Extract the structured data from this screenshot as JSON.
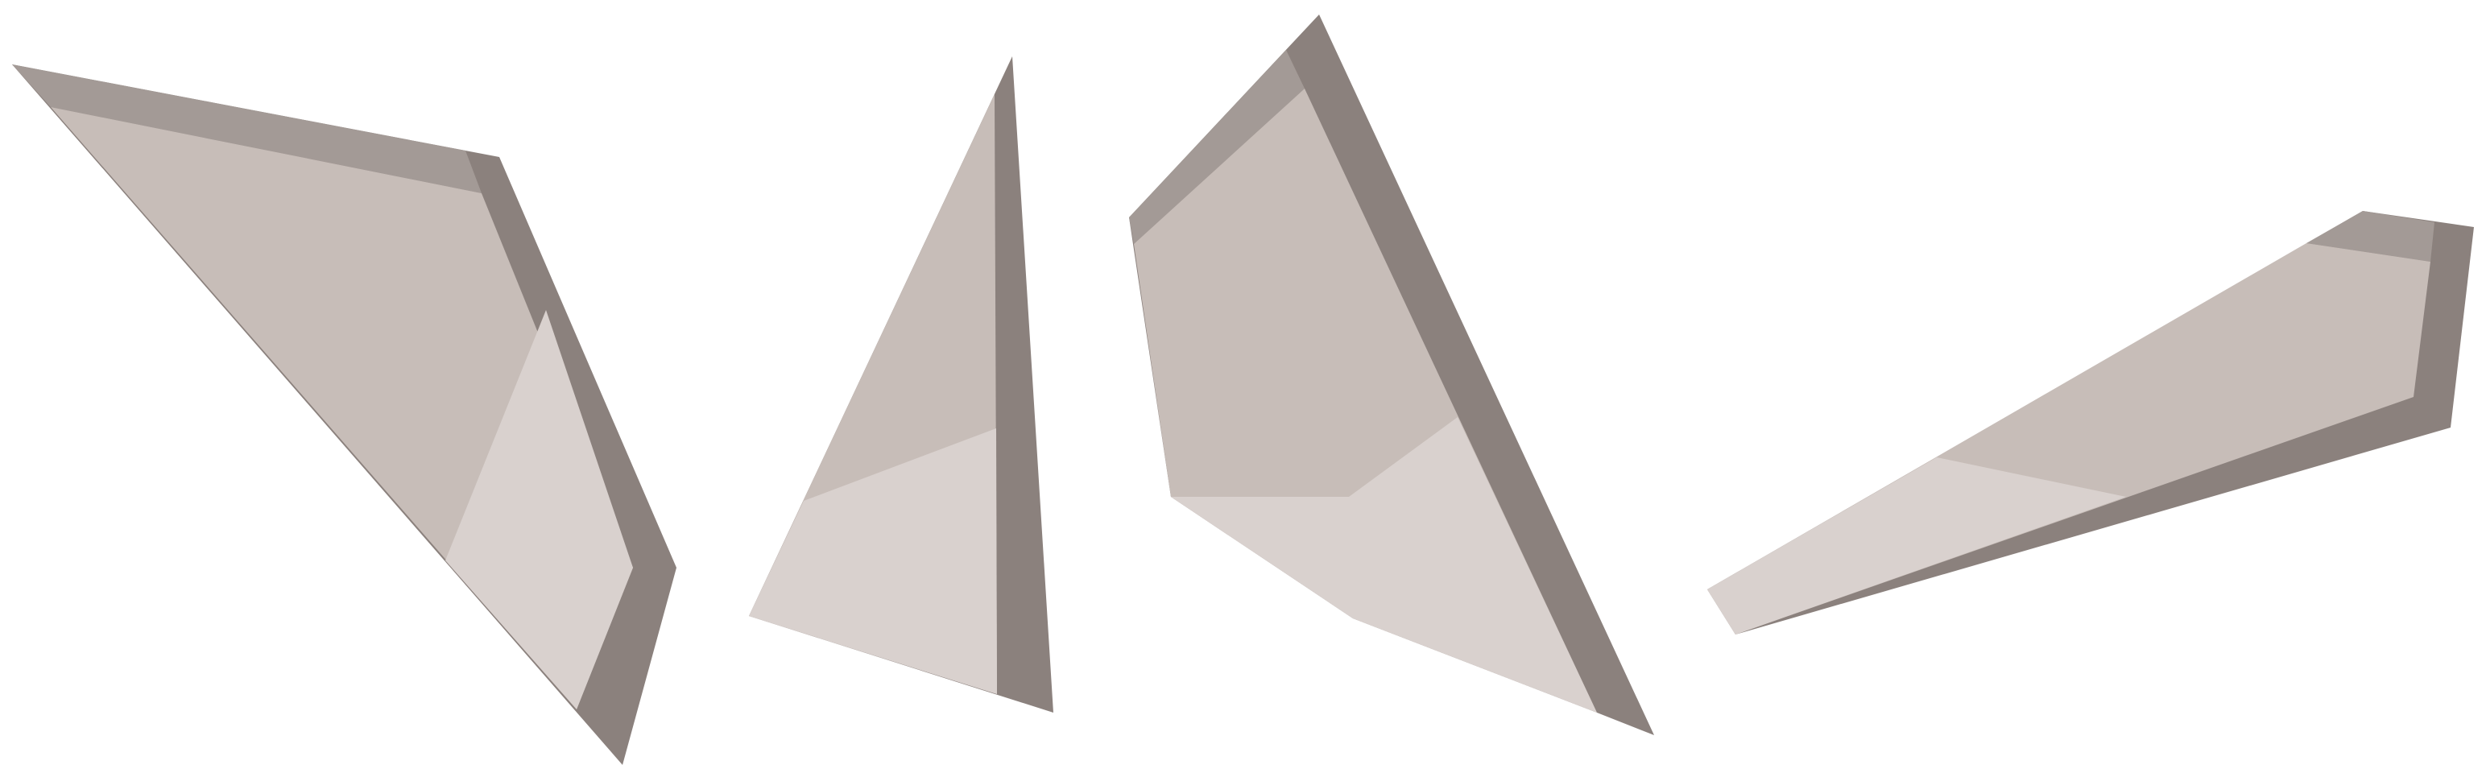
{
  "palette": {
    "dark": "#8b817d",
    "mid": "#a39a96",
    "base": "#c7bdb8",
    "light": "#d9d1ce",
    "background": "#ffffff"
  },
  "shards": [
    {
      "name": "shard-left",
      "count_facets": 5
    },
    {
      "name": "shard-center-left",
      "count_facets": 3
    },
    {
      "name": "shard-center-right",
      "count_facets": 5
    },
    {
      "name": "shard-right",
      "count_facets": 5
    }
  ]
}
